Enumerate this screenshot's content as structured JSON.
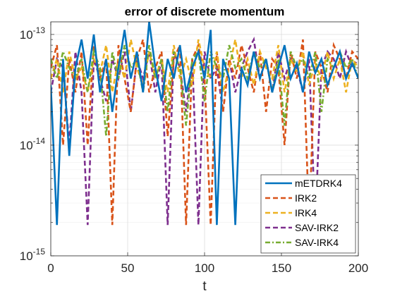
{
  "chart_data": {
    "type": "line",
    "title": "error of discrete momentum",
    "xlabel": "t",
    "ylabel": "",
    "xlim": [
      0,
      200
    ],
    "ylim": [
      1e-15,
      1.3e-13
    ],
    "yscale": "log",
    "grid": true,
    "legend_position": "bottom-right",
    "x_ticks": [
      {
        "value": 0,
        "label": "0"
      },
      {
        "value": 50,
        "label": "50"
      },
      {
        "value": 100,
        "label": "100"
      },
      {
        "value": 150,
        "label": "150"
      },
      {
        "value": 200,
        "label": "200"
      }
    ],
    "y_ticks": [
      {
        "value": 1e-15,
        "base": "10",
        "exp": "-15"
      },
      {
        "value": 1e-14,
        "base": "10",
        "exp": "-14"
      },
      {
        "value": 1e-13,
        "base": "10",
        "exp": "-13"
      }
    ],
    "series": [
      {
        "name": "mETDRK4",
        "color": "#0072BD",
        "style": "solid",
        "x": [
          0,
          4,
          8,
          12,
          16,
          20,
          24,
          28,
          32,
          36,
          40,
          44,
          48,
          52,
          56,
          60,
          64,
          68,
          72,
          76,
          80,
          84,
          88,
          92,
          96,
          100,
          104,
          108,
          112,
          116,
          120,
          124,
          128,
          132,
          136,
          140,
          144,
          148,
          152,
          156,
          160,
          164,
          168,
          172,
          176,
          180,
          184,
          188,
          192,
          196,
          200
        ],
        "y": [
          3.5e-14,
          1.9e-15,
          6e-14,
          8e-15,
          5e-14,
          9e-14,
          4e-14,
          1e-13,
          3e-14,
          6e-14,
          2e-14,
          5e-14,
          1.1e-13,
          4e-14,
          7e-14,
          3e-14,
          1.3e-13,
          5e-14,
          2.5e-14,
          6e-14,
          4e-14,
          8e-14,
          3e-14,
          5e-14,
          7e-14,
          4e-14,
          1.1e-13,
          1.9e-15,
          6e-14,
          4e-14,
          1.9e-15,
          5e-14,
          3.5e-14,
          7e-14,
          4e-14,
          6e-14,
          3e-14,
          5e-14,
          8e-14,
          4e-14,
          5.5e-14,
          3e-14,
          7e-14,
          4.5e-14,
          6e-14,
          3.5e-14,
          5e-14,
          7e-14,
          4e-14,
          5.5e-14,
          4e-14
        ]
      },
      {
        "name": "IRK2",
        "color": "#D95319",
        "style": "dashed",
        "x": [
          0,
          4,
          8,
          12,
          16,
          20,
          24,
          28,
          32,
          36,
          40,
          44,
          48,
          52,
          56,
          60,
          64,
          68,
          72,
          76,
          80,
          84,
          88,
          92,
          96,
          100,
          104,
          108,
          112,
          116,
          120,
          124,
          128,
          132,
          136,
          140,
          144,
          148,
          152,
          156,
          160,
          164,
          168,
          172,
          176,
          180,
          184,
          188,
          192,
          196,
          200
        ],
        "y": [
          5e-14,
          8e-14,
          1e-14,
          6e-14,
          3e-14,
          7e-14,
          1e-14,
          8e-14,
          4e-14,
          6e-14,
          1.9e-15,
          8e-14,
          4e-14,
          2e-14,
          6e-14,
          9e-14,
          3e-14,
          5e-14,
          7e-14,
          1.2e-14,
          6e-14,
          8e-14,
          1.9e-15,
          6e-14,
          8e-14,
          4e-14,
          1.9e-15,
          7e-14,
          2e-14,
          6e-14,
          4e-14,
          8e-14,
          5e-14,
          3e-14,
          7e-14,
          2e-14,
          6e-14,
          5e-14,
          1e-14,
          7e-14,
          4e-14,
          9e-14,
          1.9e-15,
          7e-14,
          5e-14,
          3e-14,
          8e-14,
          6e-14,
          4e-14,
          7e-14,
          6e-14
        ]
      },
      {
        "name": "IRK4",
        "color": "#EDB120",
        "style": "dashed",
        "x": [
          0,
          4,
          8,
          12,
          16,
          20,
          24,
          28,
          32,
          36,
          40,
          44,
          48,
          52,
          56,
          60,
          64,
          68,
          72,
          76,
          80,
          84,
          88,
          92,
          96,
          100,
          104,
          108,
          112,
          116,
          120,
          124,
          128,
          132,
          136,
          140,
          144,
          148,
          152,
          156,
          160,
          164,
          168,
          172,
          176,
          180,
          184,
          188,
          192,
          196,
          200
        ],
        "y": [
          4e-14,
          6e-14,
          3e-14,
          7e-14,
          4e-14,
          5e-14,
          3e-14,
          6e-14,
          4.5e-14,
          8e-14,
          3e-14,
          6e-14,
          4e-14,
          9e-14,
          5e-14,
          3.5e-14,
          7e-14,
          4e-14,
          6e-14,
          3e-14,
          8e-14,
          4e-14,
          6e-14,
          3.5e-14,
          9e-14,
          5e-14,
          4e-14,
          7e-14,
          3e-14,
          5e-14,
          9e-14,
          4e-14,
          6e-14,
          3.5e-14,
          7e-14,
          5e-14,
          4e-14,
          8e-14,
          3e-14,
          6e-14,
          4.5e-14,
          7e-14,
          3.5e-14,
          5.5e-14,
          4e-14,
          7e-14,
          4e-14,
          6e-14,
          3e-14,
          6e-14,
          5e-14
        ]
      },
      {
        "name": "SAV-IRK2",
        "color": "#7E2F8E",
        "style": "dashed",
        "x": [
          0,
          4,
          8,
          12,
          16,
          20,
          24,
          28,
          32,
          36,
          40,
          44,
          48,
          52,
          56,
          60,
          64,
          68,
          72,
          76,
          80,
          84,
          88,
          92,
          96,
          100,
          104,
          108,
          112,
          116,
          120,
          124,
          128,
          132,
          136,
          140,
          144,
          148,
          152,
          156,
          160,
          164,
          168,
          172,
          176,
          180,
          184,
          188,
          192,
          196,
          200
        ],
        "y": [
          3e-14,
          6e-14,
          5e-14,
          1e-14,
          7e-14,
          3e-14,
          1.9e-15,
          6e-14,
          4e-14,
          2.5e-14,
          6e-14,
          4e-14,
          7e-14,
          2e-14,
          6e-14,
          4e-14,
          7e-14,
          3e-14,
          6e-14,
          1.9e-15,
          7e-14,
          5e-14,
          2e-14,
          6e-14,
          1.9e-15,
          7e-14,
          4e-14,
          5e-14,
          2e-14,
          6e-14,
          3e-14,
          5e-14,
          7e-14,
          9e-14,
          4e-14,
          6e-14,
          3e-14,
          7e-14,
          4e-14,
          6e-14,
          5e-14,
          3e-14,
          6e-14,
          1.9e-15,
          5e-14,
          7e-14,
          6e-14,
          4e-14,
          7e-14,
          5e-14,
          6e-14
        ]
      },
      {
        "name": "SAV-IRK4",
        "color": "#77AC30",
        "style": "dashdot",
        "x": [
          0,
          4,
          8,
          12,
          16,
          20,
          24,
          28,
          32,
          36,
          40,
          44,
          48,
          52,
          56,
          60,
          64,
          68,
          72,
          76,
          80,
          84,
          88,
          92,
          96,
          100,
          104,
          108,
          112,
          116,
          120,
          124,
          128,
          132,
          136,
          140,
          144,
          148,
          152,
          156,
          160,
          164,
          168,
          172,
          176,
          180,
          184,
          188,
          192,
          196,
          200
        ],
        "y": [
          6e-14,
          4e-14,
          7e-14,
          5e-14,
          4e-14,
          6e-14,
          3e-14,
          7e-14,
          5e-14,
          1.2e-14,
          7e-14,
          4e-14,
          8e-14,
          5e-14,
          6e-14,
          3e-14,
          8e-14,
          4e-14,
          6e-14,
          2e-14,
          7e-14,
          5e-14,
          1.5e-14,
          6e-14,
          7e-14,
          2.5e-14,
          7e-14,
          5e-14,
          4e-14,
          8e-14,
          5e-14,
          6e-14,
          4e-14,
          7e-14,
          5e-14,
          6e-14,
          3e-14,
          6e-14,
          1.5e-14,
          7e-14,
          5e-14,
          6e-14,
          4e-14,
          7e-14,
          2e-14,
          6e-14,
          5e-14,
          7e-14,
          5e-14,
          6e-14,
          4e-14
        ]
      }
    ]
  }
}
